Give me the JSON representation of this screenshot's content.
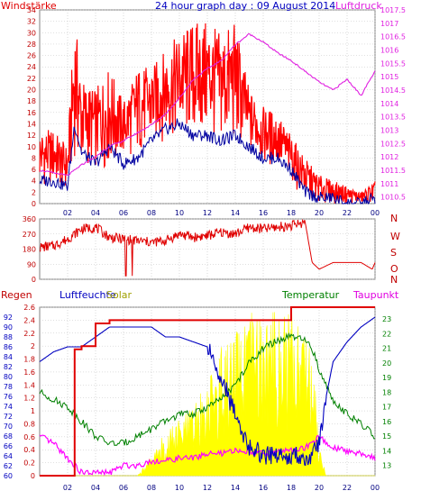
{
  "title": "24 hour graph day : 09 August 2014",
  "colors": {
    "wind": "#ff0000",
    "gust_fill": "#ff0000",
    "wind_avg": "#0000a0",
    "pressure": "#e020e0",
    "direction": "#e00000",
    "rain": "#e00000",
    "humidity": "#0000c0",
    "solar": "#ffff00",
    "temperature": "#008000",
    "dewpoint": "#ff00ff",
    "frame": "#808080",
    "grid": "#c0c0c0"
  },
  "chart_data": [
    {
      "type": "line",
      "name": "wind-pressure",
      "left_label": "Windstärke",
      "right_label": "Luftdruck",
      "x_ticks": [
        "02",
        "04",
        "06",
        "08",
        "10",
        "12",
        "14",
        "16",
        "18",
        "20",
        "22",
        "00"
      ],
      "ylim_left": [
        0,
        34
      ],
      "ylim_right": [
        1010.25,
        1017.5
      ],
      "y_left_ticks": [
        0,
        2,
        4,
        6,
        8,
        10,
        12,
        14,
        16,
        18,
        20,
        22,
        24,
        26,
        28,
        30,
        32,
        34
      ],
      "y_right_ticks": [
        "1010.5",
        "1011",
        "1011.5",
        "1012",
        "1012.5",
        "1013",
        "1013.5",
        "1014",
        "1014.5",
        "1015",
        "1015.5",
        "1016",
        "1016.5",
        "1017",
        "1017.5"
      ],
      "hours": [
        0,
        1,
        2,
        2.5,
        3,
        4,
        5,
        6,
        7,
        8,
        9,
        10,
        11,
        12,
        13,
        14,
        15,
        16,
        17,
        18,
        18.5,
        19,
        20,
        21,
        22,
        23,
        24
      ],
      "gust_max": [
        13,
        13,
        10,
        33,
        22,
        20,
        24,
        18,
        24,
        24,
        27,
        30,
        32,
        32,
        30,
        32,
        20,
        17,
        16,
        12,
        10,
        8,
        5,
        4,
        3,
        2,
        4
      ],
      "gust_min": [
        3,
        3,
        2,
        8,
        6,
        6,
        6,
        8,
        8,
        10,
        11,
        11,
        11,
        11,
        10,
        10,
        9,
        7,
        6,
        4,
        2,
        1,
        0,
        0,
        0,
        0,
        0
      ],
      "wind_avg": [
        4,
        4,
        3,
        14,
        9,
        7,
        10,
        7,
        8,
        11,
        13,
        14,
        12,
        12,
        11,
        12,
        10,
        8,
        8,
        6,
        4,
        2,
        1,
        1,
        0,
        0,
        1
      ],
      "pressure": [
        1011.5,
        1011.4,
        1011.3,
        1011.5,
        1011.7,
        1012.0,
        1012.4,
        1012.6,
        1012.9,
        1013.2,
        1013.6,
        1014.2,
        1014.9,
        1015.3,
        1015.6,
        1016.2,
        1016.6,
        1016.3,
        1015.9,
        1015.6,
        1015.4,
        1015.2,
        1014.8,
        1014.5,
        1014.9,
        1014.3,
        1015.2
      ]
    },
    {
      "type": "scatter",
      "name": "wind-direction",
      "right_labels": [
        "N",
        "W",
        "S",
        "O",
        "N"
      ],
      "ylim": [
        0,
        360
      ],
      "y_ticks": [
        0,
        90,
        180,
        270,
        360
      ],
      "hours": [
        0,
        1,
        1.5,
        2,
        3,
        4,
        5,
        6,
        7,
        8,
        9,
        10,
        11,
        12,
        13,
        14,
        15,
        16,
        17,
        18,
        18.5,
        19,
        19.5,
        20,
        21,
        22,
        23,
        23.8,
        24
      ],
      "direction": [
        190,
        200,
        220,
        240,
        300,
        310,
        250,
        240,
        230,
        220,
        230,
        270,
        250,
        260,
        280,
        270,
        310,
        300,
        310,
        320,
        330,
        340,
        100,
        60,
        100,
        100,
        100,
        60,
        100
      ]
    },
    {
      "type": "line",
      "name": "rain-humidity-solar-temperature-dewpoint",
      "left_label": "Regen",
      "labels": [
        "Luftfeuchte",
        "Solar",
        "Temperatur",
        "Taupunkt"
      ],
      "x_ticks": [
        "02",
        "04",
        "06",
        "08",
        "10",
        "12",
        "14",
        "16",
        "18",
        "20",
        "22",
        "00"
      ],
      "ylim_rain": [
        0,
        2.6
      ],
      "ylim_humidity": [
        60,
        94
      ],
      "ylim_temp": [
        12.3,
        23.8
      ],
      "rain_ticks": [
        "0",
        "0.2",
        "0.4",
        "0.6",
        "0.8",
        "1",
        "1.2",
        "1.4",
        "1.6",
        "1.8",
        "2",
        "2.2",
        "2.4",
        "2.6"
      ],
      "humidity_ticks": [
        60,
        62,
        64,
        66,
        68,
        70,
        72,
        74,
        76,
        78,
        80,
        82,
        84,
        86,
        88,
        90,
        92
      ],
      "temp_ticks": [
        13,
        14,
        15,
        16,
        17,
        18,
        19,
        20,
        21,
        22,
        23
      ],
      "hours": [
        0,
        1,
        2,
        2.5,
        3,
        4,
        5,
        6,
        7,
        8,
        9,
        10,
        11,
        12,
        13,
        14,
        15,
        16,
        17,
        18,
        19,
        19.5,
        20,
        20.5,
        21,
        22,
        23,
        24
      ],
      "rain": [
        0,
        0,
        0,
        1.95,
        2.0,
        2.35,
        2.4,
        2.4,
        2.4,
        2.4,
        2.4,
        2.4,
        2.4,
        2.4,
        2.4,
        2.4,
        2.4,
        2.4,
        2.4,
        2.6,
        2.6,
        2.6,
        2.6,
        2.6,
        2.6,
        2.6,
        2.6,
        2.6
      ],
      "humidity": [
        83,
        85,
        86,
        86,
        86,
        88,
        90,
        90,
        90,
        90,
        88,
        88,
        87,
        86,
        80,
        72,
        66,
        64,
        64,
        64,
        64,
        64,
        66,
        76,
        83,
        87,
        90,
        92
      ],
      "solar": [
        0,
        0,
        0,
        0,
        0,
        0,
        0,
        0,
        0,
        0.3,
        0.7,
        0.9,
        1.1,
        1.5,
        2.0,
        2.2,
        2.5,
        2.6,
        2.6,
        2.6,
        2.6,
        2.0,
        0.6,
        0,
        0,
        0,
        0,
        0
      ],
      "temperature": [
        18,
        17.5,
        17,
        16.5,
        16,
        15,
        14.5,
        14.5,
        15,
        15.5,
        16,
        16.5,
        16.5,
        17,
        17.5,
        18.5,
        20,
        21,
        21.5,
        21.8,
        21.5,
        21,
        19.5,
        18.5,
        17.5,
        16.5,
        15.8,
        15
      ],
      "dewpoint": [
        15,
        14.5,
        13.5,
        13,
        12.5,
        12.5,
        12.5,
        13,
        13,
        13.3,
        13.3,
        13.5,
        13.5,
        13.8,
        13.8,
        14,
        14,
        13.8,
        14,
        14,
        14.2,
        14.5,
        15,
        14.5,
        14.2,
        14,
        13.8,
        13.5
      ]
    }
  ]
}
